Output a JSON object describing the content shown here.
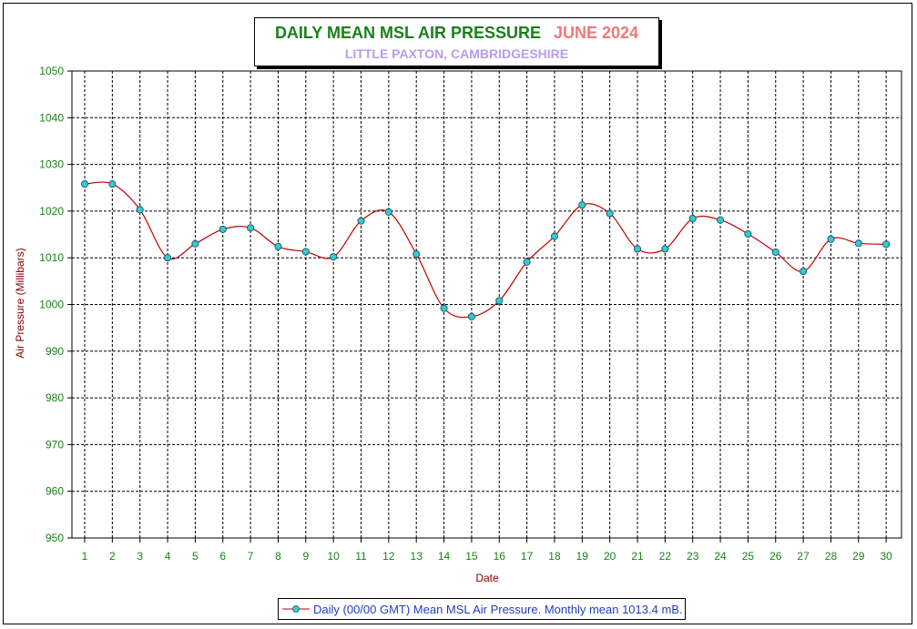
{
  "title": "DAILY MEAN MSL AIR PRESSURE",
  "title_date": "JUNE 2024",
  "subtitle": "LITTLE PAXTON, CAMBRIDGESHIRE",
  "legend_label": "Daily (00/00 GMT) Mean MSL Air Pressure. Monthly mean 1013.4 mB.",
  "colors": {
    "line": "#c00000",
    "marker": "#33cccc",
    "axis_text": "#1a7f1a",
    "axis_title": "#800000"
  },
  "chart_data": {
    "type": "line",
    "title": "DAILY MEAN MSL AIR PRESSURE",
    "xlabel": "Date",
    "ylabel": "Air Pressure (Millibars)",
    "x": [
      1,
      2,
      3,
      4,
      5,
      6,
      7,
      8,
      9,
      10,
      11,
      12,
      13,
      14,
      15,
      16,
      17,
      18,
      19,
      20,
      21,
      22,
      23,
      24,
      25,
      26,
      27,
      28,
      29,
      30
    ],
    "ylim": [
      950,
      1050
    ],
    "yticks": [
      950,
      960,
      970,
      980,
      990,
      1000,
      1010,
      1020,
      1030,
      1040,
      1050
    ],
    "grid": true,
    "legend_position": "bottom",
    "series": [
      {
        "name": "Daily (00/00 GMT) Mean MSL Air Pressure. Monthly mean 1013.4 mB.",
        "values": [
          1025.8,
          1025.8,
          1020.3,
          1010.0,
          1013.0,
          1016.1,
          1016.4,
          1012.4,
          1011.3,
          1010.2,
          1017.9,
          1019.8,
          1010.8,
          999.2,
          997.4,
          1000.8,
          1009.1,
          1014.6,
          1021.3,
          1019.5,
          1011.9,
          1011.9,
          1018.4,
          1018.1,
          1015.1,
          1011.2,
          1007.1,
          1014.0,
          1013.1,
          1012.9
        ]
      }
    ]
  }
}
